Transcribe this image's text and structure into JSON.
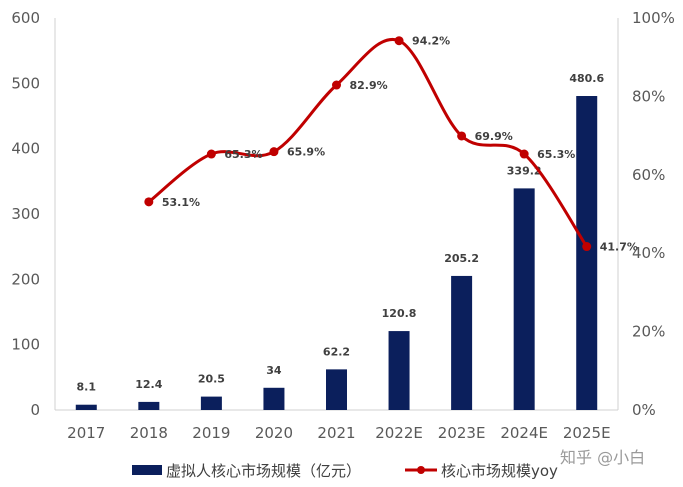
{
  "chart_data": {
    "type": "bar+line",
    "categories": [
      "2017",
      "2018",
      "2019",
      "2020",
      "2021",
      "2022E",
      "2023E",
      "2024E",
      "2025E"
    ],
    "series": [
      {
        "name": "虚拟人核心市场规模（亿元）",
        "type": "bar",
        "axis": "left",
        "color": "#0b1f5c",
        "values": [
          8.1,
          12.4,
          20.5,
          34,
          62.2,
          120.8,
          205.2,
          339.2,
          480.6
        ],
        "labels": [
          "8.1",
          "12.4",
          "20.5",
          "34",
          "62.2",
          "120.8",
          "205.2",
          "339.2",
          "480.6"
        ]
      },
      {
        "name": "核心市场规模yoy",
        "type": "line",
        "axis": "right",
        "color": "#c00000",
        "values": [
          null,
          53.1,
          65.3,
          65.9,
          82.9,
          94.2,
          69.9,
          65.3,
          41.7
        ],
        "labels": [
          "",
          "53.1%",
          "65.3%",
          "65.9%",
          "82.9%",
          "94.2%",
          "69.9%",
          "65.3%",
          "41.7%"
        ]
      }
    ],
    "y_left": {
      "min": 0,
      "max": 600,
      "step": 100,
      "ticks": [
        "0",
        "100",
        "200",
        "300",
        "400",
        "500",
        "600"
      ]
    },
    "y_right": {
      "min": 0,
      "max": 100,
      "step": 20,
      "ticks": [
        "0%",
        "20%",
        "40%",
        "60%",
        "80%",
        "100%"
      ]
    },
    "grid": false,
    "legend_position": "bottom"
  },
  "watermark": "知乎 @小白"
}
